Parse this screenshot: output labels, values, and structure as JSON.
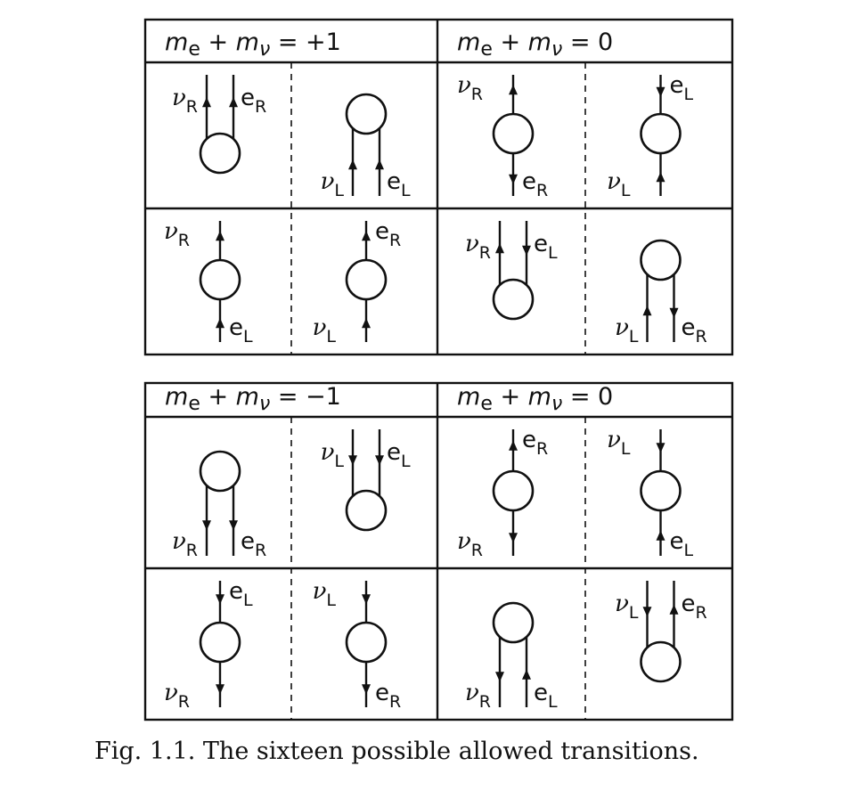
{
  "panels": [
    {
      "headers": [
        {
          "m1": "m",
          "s1": "e",
          "op": " + ",
          "m2": "m",
          "s2": "ν",
          "rhs": " = +1"
        },
        {
          "m1": "m",
          "s1": "e",
          "op": " + ",
          "m2": "m",
          "s2": "ν",
          "rhs": " = 0"
        }
      ],
      "cells": [
        {
          "top": [
            {
              "label": "ν",
              "sub": "R",
              "dir": "up"
            },
            {
              "label": "e",
              "sub": "R",
              "dir": "up"
            }
          ]
        },
        {
          "bottom": [
            {
              "label": "ν",
              "sub": "L",
              "dir": "up"
            },
            {
              "label": "e",
              "sub": "L",
              "dir": "up"
            }
          ]
        },
        {
          "top": [
            {
              "label": "ν",
              "sub": "R",
              "dir": "up"
            }
          ],
          "bottom": [
            {
              "label": "e",
              "sub": "R",
              "dir": "down"
            }
          ]
        },
        {
          "top": [
            {
              "label": "e",
              "sub": "L",
              "dir": "down"
            }
          ],
          "bottom": [
            {
              "label": "ν",
              "sub": "L",
              "dir": "up"
            }
          ]
        },
        {
          "top": [
            {
              "label": "ν",
              "sub": "R",
              "dir": "up"
            }
          ],
          "bottom": [
            {
              "label": "e",
              "sub": "L",
              "dir": "up"
            }
          ]
        },
        {
          "top": [
            {
              "label": "e",
              "sub": "R",
              "dir": "up"
            }
          ],
          "bottom": [
            {
              "label": "ν",
              "sub": "L",
              "dir": "up"
            }
          ]
        },
        {
          "top": [
            {
              "label": "ν",
              "sub": "R",
              "dir": "up"
            },
            {
              "label": "e",
              "sub": "L",
              "dir": "down"
            }
          ]
        },
        {
          "bottom": [
            {
              "label": "ν",
              "sub": "L",
              "dir": "up"
            },
            {
              "label": "e",
              "sub": "R",
              "dir": "down"
            }
          ]
        }
      ]
    },
    {
      "headers": [
        {
          "m1": "m",
          "s1": "e",
          "op": " + ",
          "m2": "m",
          "s2": "ν",
          "rhs": " = −1"
        },
        {
          "m1": "m",
          "s1": "e",
          "op": " + ",
          "m2": "m",
          "s2": "ν",
          "rhs": " = 0"
        }
      ],
      "cells": [
        {
          "bottom": [
            {
              "label": "ν",
              "sub": "R",
              "dir": "down"
            },
            {
              "label": "e",
              "sub": "R",
              "dir": "down"
            }
          ]
        },
        {
          "top": [
            {
              "label": "ν",
              "sub": "L",
              "dir": "down"
            },
            {
              "label": "e",
              "sub": "L",
              "dir": "down"
            }
          ]
        },
        {
          "top": [
            {
              "label": "e",
              "sub": "R",
              "dir": "up"
            }
          ],
          "bottom": [
            {
              "label": "ν",
              "sub": "R",
              "dir": "down"
            }
          ]
        },
        {
          "top": [
            {
              "label": "ν",
              "sub": "L",
              "dir": "down"
            }
          ],
          "bottom": [
            {
              "label": "e",
              "sub": "L",
              "dir": "up"
            }
          ]
        },
        {
          "top": [
            {
              "label": "e",
              "sub": "L",
              "dir": "down"
            }
          ],
          "bottom": [
            {
              "label": "ν",
              "sub": "R",
              "dir": "down"
            }
          ]
        },
        {
          "top": [
            {
              "label": "ν",
              "sub": "L",
              "dir": "down"
            }
          ],
          "bottom": [
            {
              "label": "e",
              "sub": "R",
              "dir": "down"
            }
          ]
        },
        {
          "bottom": [
            {
              "label": "ν",
              "sub": "R",
              "dir": "down"
            },
            {
              "label": "e",
              "sub": "L",
              "dir": "up"
            }
          ]
        },
        {
          "top": [
            {
              "label": "ν",
              "sub": "L",
              "dir": "down"
            },
            {
              "label": "e",
              "sub": "R",
              "dir": "up"
            }
          ]
        }
      ]
    }
  ],
  "caption": "Fig. 1.1. The sixteen possible allowed transitions."
}
